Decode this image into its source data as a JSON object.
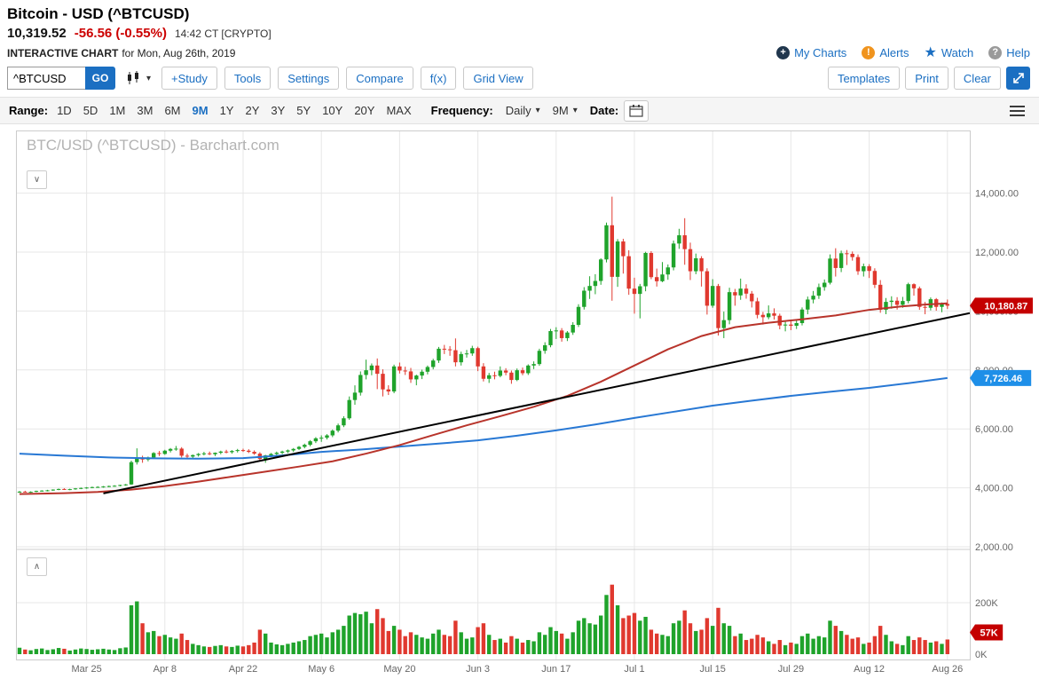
{
  "header": {
    "title": "Bitcoin - USD (^BTCUSD)",
    "price": "10,319.52",
    "change": "-56.56 (-0.55%)",
    "session": "14:42 CT [CRYPTO]",
    "chart_label": "INTERACTIVE CHART",
    "chart_label_suffix": "for Mon, Aug 26th, 2019",
    "links": {
      "my_charts": "My Charts",
      "alerts": "Alerts",
      "watch": "Watch",
      "help": "Help"
    },
    "icons": {
      "my_charts": "plus-circle-icon",
      "alerts": "exclamation-circle-icon",
      "watch": "star-icon",
      "help": "question-circle-icon"
    }
  },
  "toolbar": {
    "symbol_value": "^BTCUSD",
    "go_label": "GO",
    "buttons": [
      "+Study",
      "Tools",
      "Settings",
      "Compare",
      "f(x)",
      "Grid View"
    ],
    "right_buttons": [
      "Templates",
      "Print",
      "Clear"
    ]
  },
  "rangebar": {
    "range_label": "Range:",
    "ranges": [
      "1D",
      "5D",
      "1M",
      "3M",
      "6M",
      "9M",
      "1Y",
      "2Y",
      "3Y",
      "5Y",
      "10Y",
      "20Y",
      "MAX"
    ],
    "selected_range": "9M",
    "frequency_label": "Frequency:",
    "frequency_value": "Daily",
    "period_value": "9M",
    "date_label": "Date:"
  },
  "chart_data": {
    "type": "candlestick",
    "title": "BTC/USD (^BTCUSD) - Barchart.com",
    "x_tick_labels": [
      "Mar 25",
      "Apr 8",
      "Apr 22",
      "May 6",
      "May 20",
      "Jun 3",
      "Jun 17",
      "Jul 1",
      "Jul 15",
      "Jul 29",
      "Aug 12",
      "Aug 26"
    ],
    "x_tick_indices": [
      12,
      26,
      40,
      54,
      68,
      82,
      96,
      110,
      124,
      138,
      152,
      166
    ],
    "y_axis_ticks": [
      2000,
      4000,
      6000,
      8000,
      10000,
      12000,
      14000
    ],
    "y_axis_tick_labels": [
      "2,000.00",
      "4,000.00",
      "6,000.00",
      "8,000.00",
      "10,000.00",
      "12,000.00",
      "14,000.00"
    ],
    "volume_ticks": [
      [
        200,
        "200K"
      ],
      [
        0,
        "0K"
      ]
    ],
    "last_price_value": 10180.87,
    "last_price_label": "10,180.87",
    "ma_blue_value": 7726.46,
    "ma_blue_label": "7,726.46",
    "last_volume_value": 57,
    "last_volume_label": "57K",
    "colors": {
      "up": "#1fa32b",
      "down": "#e0392f",
      "ma_blue": "#2878d4",
      "ma_red": "#b8342b",
      "trend": "#000000",
      "grid": "#e7e7e7",
      "axis_text": "#666666",
      "badge_red": "#c40000",
      "badge_blue": "#1e8fe8"
    },
    "candles": [
      [
        3860,
        3895,
        3830,
        3870,
        25
      ],
      [
        3870,
        3900,
        3840,
        3855,
        18
      ],
      [
        3855,
        3880,
        3830,
        3865,
        15
      ],
      [
        3865,
        3905,
        3850,
        3895,
        20
      ],
      [
        3895,
        3920,
        3870,
        3905,
        22
      ],
      [
        3905,
        3930,
        3880,
        3915,
        16
      ],
      [
        3915,
        3950,
        3895,
        3940,
        19
      ],
      [
        3940,
        3975,
        3920,
        3960,
        24
      ],
      [
        3960,
        3985,
        3930,
        3945,
        21
      ],
      [
        3945,
        3970,
        3920,
        3955,
        14
      ],
      [
        3955,
        3990,
        3935,
        3980,
        18
      ],
      [
        3980,
        4010,
        3955,
        3995,
        22
      ],
      [
        3995,
        4025,
        3970,
        4010,
        20
      ],
      [
        4010,
        4040,
        3985,
        4025,
        17
      ],
      [
        4025,
        4055,
        4000,
        4030,
        19
      ],
      [
        4030,
        4060,
        4005,
        4045,
        21
      ],
      [
        4045,
        4075,
        4020,
        4060,
        18
      ],
      [
        4060,
        4090,
        4035,
        4070,
        16
      ],
      [
        4070,
        4105,
        4050,
        4095,
        23
      ],
      [
        4095,
        4130,
        4070,
        4115,
        26
      ],
      [
        4115,
        4920,
        4100,
        4870,
        190
      ],
      [
        4870,
        5340,
        4790,
        5010,
        205
      ],
      [
        5010,
        5090,
        4850,
        4960,
        120
      ],
      [
        4960,
        5060,
        4900,
        5030,
        85
      ],
      [
        5030,
        5210,
        5000,
        5180,
        90
      ],
      [
        5180,
        5250,
        5080,
        5150,
        70
      ],
      [
        5150,
        5290,
        5120,
        5260,
        75
      ],
      [
        5260,
        5350,
        5200,
        5320,
        65
      ],
      [
        5320,
        5420,
        5260,
        5330,
        60
      ],
      [
        5330,
        5380,
        5030,
        5090,
        80
      ],
      [
        5090,
        5160,
        5010,
        5060,
        55
      ],
      [
        5060,
        5130,
        5000,
        5110,
        40
      ],
      [
        5110,
        5180,
        5060,
        5150,
        35
      ],
      [
        5150,
        5220,
        5100,
        5170,
        30
      ],
      [
        5170,
        5230,
        5110,
        5140,
        28
      ],
      [
        5140,
        5200,
        5080,
        5190,
        32
      ],
      [
        5190,
        5260,
        5140,
        5230,
        35
      ],
      [
        5230,
        5290,
        5170,
        5210,
        30
      ],
      [
        5210,
        5280,
        5160,
        5250,
        28
      ],
      [
        5250,
        5320,
        5200,
        5280,
        33
      ],
      [
        5280,
        5330,
        5220,
        5260,
        30
      ],
      [
        5260,
        5310,
        5180,
        5220,
        35
      ],
      [
        5220,
        5270,
        5120,
        5160,
        45
      ],
      [
        5160,
        5210,
        4920,
        4980,
        95
      ],
      [
        4980,
        5120,
        4850,
        5100,
        80
      ],
      [
        5100,
        5180,
        5040,
        5150,
        45
      ],
      [
        5150,
        5230,
        5100,
        5190,
        38
      ],
      [
        5190,
        5260,
        5140,
        5230,
        35
      ],
      [
        5230,
        5300,
        5180,
        5270,
        40
      ],
      [
        5270,
        5350,
        5220,
        5320,
        45
      ],
      [
        5320,
        5420,
        5280,
        5390,
        50
      ],
      [
        5390,
        5500,
        5340,
        5460,
        55
      ],
      [
        5460,
        5620,
        5410,
        5580,
        70
      ],
      [
        5580,
        5720,
        5520,
        5680,
        75
      ],
      [
        5680,
        5780,
        5560,
        5700,
        80
      ],
      [
        5700,
        5820,
        5640,
        5780,
        65
      ],
      [
        5780,
        5980,
        5720,
        5940,
        85
      ],
      [
        5940,
        6180,
        5880,
        6120,
        95
      ],
      [
        6120,
        6430,
        6060,
        6360,
        110
      ],
      [
        6360,
        7100,
        6310,
        6980,
        150
      ],
      [
        6980,
        7480,
        6820,
        7230,
        160
      ],
      [
        7230,
        7950,
        7130,
        7830,
        155
      ],
      [
        7830,
        8350,
        7680,
        7990,
        165
      ],
      [
        7990,
        8220,
        7820,
        8150,
        120
      ],
      [
        8150,
        8390,
        7350,
        7870,
        175
      ],
      [
        7870,
        8020,
        7100,
        7340,
        140
      ],
      [
        7340,
        7480,
        7150,
        7270,
        90
      ],
      [
        7270,
        8180,
        7210,
        8120,
        110
      ],
      [
        8120,
        8250,
        7880,
        7980,
        95
      ],
      [
        7980,
        8110,
        7830,
        7950,
        70
      ],
      [
        7950,
        8070,
        7560,
        7680,
        85
      ],
      [
        7680,
        7840,
        7480,
        7810,
        75
      ],
      [
        7810,
        8010,
        7690,
        7940,
        65
      ],
      [
        7940,
        8150,
        7850,
        8100,
        60
      ],
      [
        8100,
        8380,
        8020,
        8320,
        80
      ],
      [
        8320,
        8780,
        8240,
        8720,
        95
      ],
      [
        8720,
        8850,
        8540,
        8700,
        75
      ],
      [
        8700,
        8810,
        8480,
        8670,
        70
      ],
      [
        8670,
        9070,
        8120,
        8260,
        130
      ],
      [
        8260,
        8620,
        8150,
        8540,
        85
      ],
      [
        8540,
        8680,
        8420,
        8560,
        60
      ],
      [
        8560,
        8820,
        8480,
        8740,
        65
      ],
      [
        8740,
        8790,
        7960,
        8120,
        105
      ],
      [
        8120,
        8230,
        7610,
        7700,
        120
      ],
      [
        7700,
        7900,
        7560,
        7820,
        75
      ],
      [
        7820,
        7940,
        7680,
        7800,
        55
      ],
      [
        7800,
        8120,
        7750,
        7980,
        60
      ],
      [
        7980,
        8060,
        7820,
        7910,
        45
      ],
      [
        7910,
        7980,
        7530,
        7660,
        70
      ],
      [
        7660,
        8050,
        7620,
        7990,
        60
      ],
      [
        7990,
        8080,
        7820,
        7890,
        45
      ],
      [
        7890,
        8190,
        7830,
        8150,
        55
      ],
      [
        8150,
        8290,
        8030,
        8200,
        50
      ],
      [
        8200,
        8720,
        8140,
        8650,
        85
      ],
      [
        8650,
        8940,
        8550,
        8840,
        75
      ],
      [
        8840,
        9390,
        8770,
        9320,
        105
      ],
      [
        9320,
        9450,
        9050,
        9340,
        90
      ],
      [
        9340,
        9420,
        8960,
        9080,
        80
      ],
      [
        9080,
        9320,
        8980,
        9270,
        60
      ],
      [
        9270,
        9620,
        9190,
        9530,
        85
      ],
      [
        9530,
        10230,
        9460,
        10140,
        130
      ],
      [
        10140,
        10810,
        10050,
        10690,
        140
      ],
      [
        10690,
        11180,
        10410,
        10850,
        120
      ],
      [
        10850,
        11250,
        10570,
        11020,
        115
      ],
      [
        11020,
        11790,
        10890,
        11750,
        150
      ],
      [
        11750,
        13000,
        11650,
        12910,
        230
      ],
      [
        12910,
        13880,
        10350,
        11160,
        270
      ],
      [
        11160,
        12440,
        10820,
        12360,
        190
      ],
      [
        12360,
        12450,
        11270,
        11860,
        140
      ],
      [
        11860,
        12060,
        10550,
        10760,
        150
      ],
      [
        10760,
        11130,
        9910,
        10580,
        160
      ],
      [
        10580,
        10920,
        9750,
        10840,
        130
      ],
      [
        10840,
        12010,
        10670,
        11970,
        145
      ],
      [
        11970,
        12030,
        11080,
        11150,
        95
      ],
      [
        11150,
        11440,
        10830,
        11010,
        80
      ],
      [
        11010,
        11660,
        10980,
        11240,
        75
      ],
      [
        11240,
        11580,
        11060,
        11480,
        70
      ],
      [
        11480,
        12390,
        11380,
        12290,
        120
      ],
      [
        12290,
        12790,
        12110,
        12570,
        130
      ],
      [
        12570,
        13150,
        11570,
        12100,
        170
      ],
      [
        12100,
        12320,
        11050,
        11350,
        120
      ],
      [
        11350,
        11950,
        11250,
        11790,
        90
      ],
      [
        11790,
        11860,
        10830,
        11350,
        95
      ],
      [
        11350,
        11450,
        9880,
        10180,
        140
      ],
      [
        10180,
        11080,
        10110,
        10850,
        110
      ],
      [
        10850,
        10920,
        9170,
        9420,
        180
      ],
      [
        9420,
        9980,
        9080,
        9690,
        120
      ],
      [
        9690,
        10790,
        9550,
        10640,
        110
      ],
      [
        10640,
        10750,
        10180,
        10530,
        70
      ],
      [
        10530,
        11100,
        10380,
        10760,
        80
      ],
      [
        10760,
        10910,
        10420,
        10590,
        55
      ],
      [
        10590,
        10680,
        10120,
        10330,
        60
      ],
      [
        10330,
        10450,
        9750,
        9870,
        75
      ],
      [
        9870,
        9970,
        9540,
        9790,
        65
      ],
      [
        9790,
        10190,
        9720,
        9920,
        50
      ],
      [
        9920,
        10090,
        9710,
        9840,
        40
      ],
      [
        9840,
        9910,
        9380,
        9510,
        55
      ],
      [
        9510,
        9650,
        9310,
        9540,
        35
      ],
      [
        9540,
        9700,
        9350,
        9500,
        45
      ],
      [
        9500,
        9720,
        9390,
        9590,
        40
      ],
      [
        9590,
        10120,
        9510,
        10050,
        70
      ],
      [
        10050,
        10490,
        9890,
        10390,
        80
      ],
      [
        10390,
        10680,
        10260,
        10520,
        60
      ],
      [
        10520,
        10930,
        10410,
        10810,
        70
      ],
      [
        10810,
        11070,
        10690,
        10960,
        65
      ],
      [
        10960,
        11920,
        10900,
        11780,
        130
      ],
      [
        11780,
        12130,
        11170,
        11460,
        110
      ],
      [
        11460,
        12050,
        11320,
        11960,
        90
      ],
      [
        11960,
        12070,
        11560,
        11940,
        75
      ],
      [
        11940,
        12020,
        11710,
        11830,
        60
      ],
      [
        11830,
        11920,
        11230,
        11350,
        65
      ],
      [
        11350,
        11610,
        11170,
        11520,
        40
      ],
      [
        11520,
        11590,
        11120,
        11360,
        45
      ],
      [
        11360,
        11450,
        10780,
        10890,
        70
      ],
      [
        10890,
        11050,
        9940,
        10040,
        110
      ],
      [
        10040,
        10440,
        9890,
        10310,
        75
      ],
      [
        10310,
        10500,
        10080,
        10350,
        50
      ],
      [
        10350,
        10470,
        10050,
        10210,
        40
      ],
      [
        10210,
        10480,
        10110,
        10340,
        35
      ],
      [
        10340,
        10960,
        10260,
        10910,
        70
      ],
      [
        10910,
        10940,
        10520,
        10770,
        55
      ],
      [
        10770,
        10830,
        10040,
        10140,
        65
      ],
      [
        10140,
        10310,
        9890,
        10110,
        55
      ],
      [
        10110,
        10460,
        10020,
        10400,
        45
      ],
      [
        10400,
        10440,
        10010,
        10140,
        50
      ],
      [
        10140,
        10290,
        9960,
        10240,
        40
      ],
      [
        10240,
        10390,
        10070,
        10180.87,
        57
      ]
    ],
    "ma_blue_points": [
      [
        0,
        5160
      ],
      [
        8,
        5090
      ],
      [
        16,
        5030
      ],
      [
        24,
        5000
      ],
      [
        32,
        4990
      ],
      [
        40,
        5010
      ],
      [
        47,
        5100
      ],
      [
        54,
        5220
      ],
      [
        61,
        5300
      ],
      [
        68,
        5400
      ],
      [
        75,
        5500
      ],
      [
        82,
        5610
      ],
      [
        89,
        5770
      ],
      [
        96,
        5950
      ],
      [
        103,
        6150
      ],
      [
        110,
        6370
      ],
      [
        117,
        6580
      ],
      [
        124,
        6790
      ],
      [
        131,
        6960
      ],
      [
        138,
        7120
      ],
      [
        145,
        7260
      ],
      [
        152,
        7390
      ],
      [
        159,
        7550
      ],
      [
        166,
        7726
      ]
    ],
    "ma_red_points": [
      [
        0,
        3790
      ],
      [
        8,
        3820
      ],
      [
        14,
        3860
      ],
      [
        20,
        3940
      ],
      [
        26,
        4060
      ],
      [
        32,
        4210
      ],
      [
        38,
        4380
      ],
      [
        44,
        4550
      ],
      [
        50,
        4720
      ],
      [
        56,
        4900
      ],
      [
        62,
        5160
      ],
      [
        68,
        5450
      ],
      [
        74,
        5790
      ],
      [
        80,
        6120
      ],
      [
        86,
        6430
      ],
      [
        92,
        6750
      ],
      [
        98,
        7120
      ],
      [
        104,
        7600
      ],
      [
        110,
        8150
      ],
      [
        116,
        8700
      ],
      [
        122,
        9150
      ],
      [
        128,
        9450
      ],
      [
        134,
        9600
      ],
      [
        140,
        9720
      ],
      [
        146,
        9850
      ],
      [
        152,
        10040
      ],
      [
        158,
        10160
      ],
      [
        162,
        10220
      ],
      [
        166,
        10260
      ]
    ],
    "trendline": [
      [
        15,
        3810
      ],
      [
        170,
        9930
      ]
    ]
  }
}
